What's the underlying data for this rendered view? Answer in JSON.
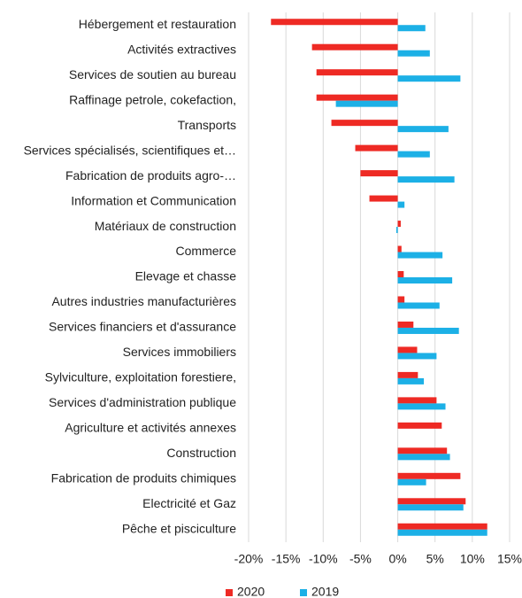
{
  "chart_data": {
    "type": "hbar",
    "categories": [
      "Hébergement et restauration",
      "Activités extractives",
      "Services de soutien au bureau",
      "Raffinage petrole, cokefaction,",
      "Transports",
      "Services spécialisés, scientifiques et…",
      "Fabrication de produits agro-…",
      "Information et Communication",
      "Matériaux de construction",
      "Commerce",
      "Elevage et chasse",
      "Autres industries manufacturières",
      "Services financiers et d'assurance",
      "Services immobiliers",
      "Sylviculture, exploitation forestiere,",
      "Services d'administration publique",
      "Agriculture et activités annexes",
      "Construction",
      "Fabrication de produits chimiques",
      "Electricité et Gaz",
      "Pêche et pisciculture"
    ],
    "series": [
      {
        "name": "2020",
        "color": "#ee2a24",
        "values": [
          -17.0,
          -11.5,
          -10.9,
          -10.9,
          -8.9,
          -5.7,
          -5.0,
          -3.8,
          0.4,
          0.5,
          0.8,
          0.9,
          2.1,
          2.6,
          2.7,
          5.2,
          5.9,
          6.6,
          8.4,
          9.1,
          12.0
        ]
      },
      {
        "name": "2019",
        "color": "#1cb0e6",
        "values": [
          3.7,
          4.3,
          8.4,
          -8.3,
          6.8,
          4.3,
          7.6,
          0.9,
          -0.2,
          6.0,
          7.3,
          5.6,
          8.2,
          5.2,
          3.5,
          6.4,
          null,
          7.0,
          3.8,
          8.8,
          12.0
        ]
      }
    ],
    "xlim": [
      -20,
      15
    ],
    "xticks": [
      {
        "value": -20,
        "label": "-20%"
      },
      {
        "value": -15,
        "label": "-15%"
      },
      {
        "value": -10,
        "label": "-10%"
      },
      {
        "value": -5,
        "label": "-5%"
      },
      {
        "value": 0,
        "label": "0%"
      },
      {
        "value": 5,
        "label": "5%"
      },
      {
        "value": 10,
        "label": "10%"
      },
      {
        "value": 15,
        "label": "15%"
      }
    ],
    "grid": true,
    "legend": "bottom"
  }
}
